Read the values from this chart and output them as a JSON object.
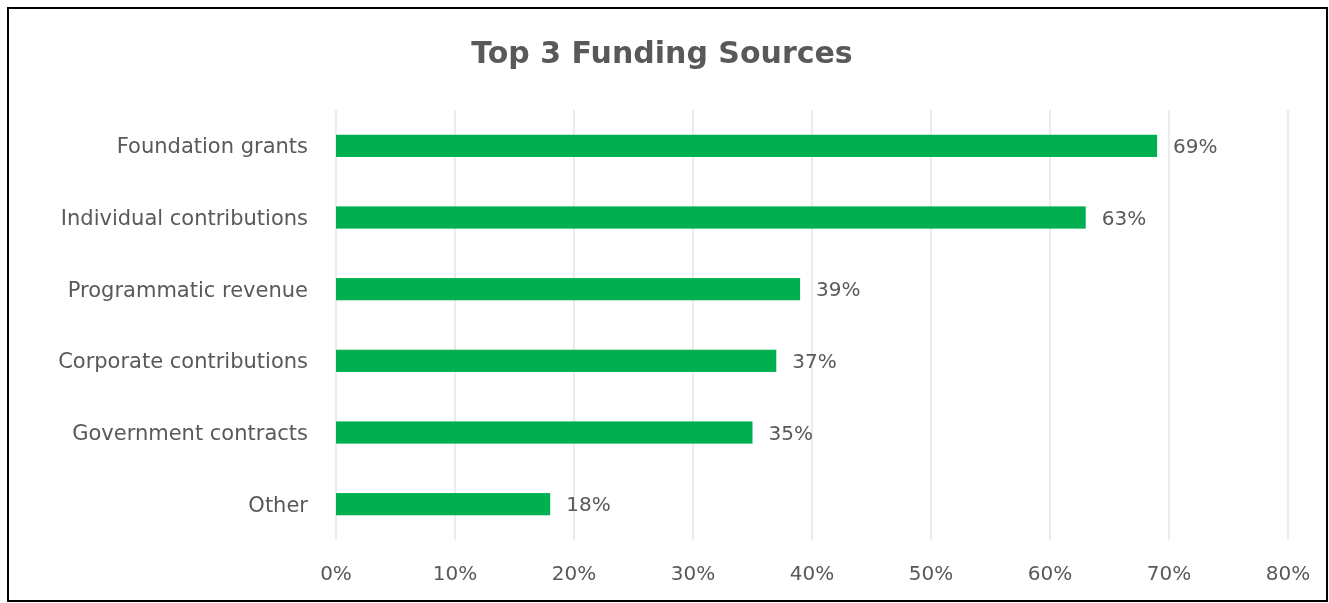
{
  "chart_data": {
    "type": "bar",
    "title": "Top 3 Funding Sources",
    "orientation": "horizontal",
    "categories": [
      "Foundation grants",
      "Individual contributions",
      "Programmatic revenue",
      "Corporate contributions",
      "Government contracts",
      "Other"
    ],
    "values": [
      69,
      63,
      39,
      37,
      35,
      18
    ],
    "value_labels": [
      "69%",
      "63%",
      "39%",
      "37%",
      "35%",
      "18%"
    ],
    "color": "#00b050",
    "xlim": [
      0,
      80
    ],
    "xticks": [
      {
        "value": 0,
        "label": "0%"
      },
      {
        "value": 10,
        "label": "10%"
      },
      {
        "value": 20,
        "label": "20%"
      },
      {
        "value": 30,
        "label": "30%"
      },
      {
        "value": 40,
        "label": "40%"
      },
      {
        "value": 50,
        "label": "50%"
      },
      {
        "value": 60,
        "label": "60%"
      },
      {
        "value": 70,
        "label": "70%"
      },
      {
        "value": 80,
        "label": "80%"
      }
    ],
    "grid": true
  }
}
